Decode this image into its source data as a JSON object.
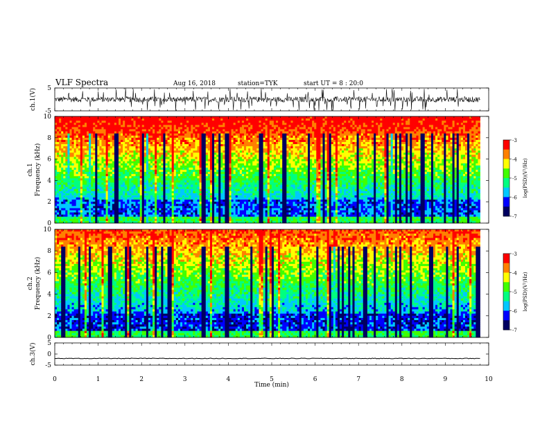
{
  "header": {
    "title": "VLF Spectra",
    "date": "Aug 16, 2018",
    "station": "station=TYK",
    "start_time": "start UT = 8 : 20:0"
  },
  "chart_data": [
    {
      "type": "line",
      "name": "ch1-waveform",
      "ylabel": "ch.1(V)",
      "xlim": [
        0,
        10
      ],
      "ylim": [
        -5,
        5
      ],
      "yticks": [
        5,
        -5
      ],
      "description_of_signal": "noisy waveform centered near 0 V with frequent spikes reaching about ±5 V",
      "baseline": 0,
      "amplitude_typical": 1.5,
      "spike_max": 5
    },
    {
      "type": "heatmap",
      "name": "ch1-spectrogram",
      "ylabel": "ch.1\nFrequency (kHz)",
      "xlim": [
        0,
        9.8
      ],
      "ylim": [
        0,
        10
      ],
      "yticks": [
        0,
        2,
        4,
        6,
        8,
        10
      ],
      "colorbar": {
        "label": "log(PSD)(V²/Hz)",
        "range": [
          -7,
          -3
        ],
        "ticks": [
          -3,
          -4,
          -5,
          -6,
          -7
        ],
        "colormap": [
          "#000060",
          "#0000ff",
          "#00c8ff",
          "#00ff80",
          "#40ff00",
          "#ffff00",
          "#ff8000",
          "#ff0000"
        ]
      }
    },
    {
      "type": "heatmap",
      "name": "ch2-spectrogram",
      "ylabel": "ch.2\nFrequency (kHz)",
      "xlim": [
        0,
        9.8
      ],
      "ylim": [
        0,
        10
      ],
      "yticks": [
        0,
        2,
        4,
        6,
        8,
        10
      ],
      "colorbar": {
        "label": "log(PSD)(V²/Hz)",
        "range": [
          -7,
          -3
        ],
        "ticks": [
          -3,
          -4,
          -5,
          -6,
          -7
        ],
        "colormap": [
          "#000060",
          "#0000ff",
          "#00c8ff",
          "#00ff80",
          "#40ff00",
          "#ffff00",
          "#ff8000",
          "#ff0000"
        ]
      }
    },
    {
      "type": "line",
      "name": "ch3-waveform",
      "ylabel": "ch.3(V)",
      "xlim": [
        0,
        10
      ],
      "ylim": [
        -5,
        5
      ],
      "yticks": [
        5,
        0,
        -5
      ],
      "baseline": -2,
      "xlabel": "Time (min)",
      "xticks": [
        0,
        1,
        2,
        3,
        4,
        5,
        6,
        7,
        8,
        9,
        10
      ]
    }
  ]
}
